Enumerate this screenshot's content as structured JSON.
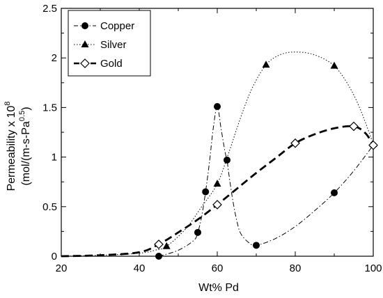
{
  "chart_data": {
    "type": "line",
    "xlabel": "Wt% Pd",
    "ylabel_line1_prefix": "Permeability x 10",
    "ylabel_line1_sup": "8",
    "ylabel_line2_prefix": "(mol/(m-s-Pa",
    "ylabel_line2_sup": "0.5",
    "ylabel_line2_suffix": ")",
    "xlim": [
      20,
      100
    ],
    "ylim": [
      0,
      2.5
    ],
    "xticks": [
      "20",
      "40",
      "60",
      "80",
      "100"
    ],
    "yticks": [
      "0",
      "0.5",
      "1",
      "1.5",
      "2",
      "2.5"
    ],
    "legend_position": "top-left",
    "series": [
      {
        "name": "Copper",
        "marker": "circle",
        "line_style": "dash-dot",
        "points": [
          {
            "x": 45,
            "y": 0.0
          },
          {
            "x": 55,
            "y": 0.24
          },
          {
            "x": 57,
            "y": 0.65
          },
          {
            "x": 60,
            "y": 1.51
          },
          {
            "x": 62.5,
            "y": 0.97
          },
          {
            "x": 70,
            "y": 0.11
          },
          {
            "x": 90,
            "y": 0.64
          },
          {
            "x": 100,
            "y": 1.12
          }
        ]
      },
      {
        "name": "Silver",
        "marker": "triangle",
        "line_style": "dotted",
        "points": [
          {
            "x": 47,
            "y": 0.1
          },
          {
            "x": 60,
            "y": 0.73
          },
          {
            "x": 72.5,
            "y": 1.93
          },
          {
            "x": 90,
            "y": 1.92
          },
          {
            "x": 100,
            "y": 1.13
          }
        ]
      },
      {
        "name": "Gold",
        "marker": "diamond-open",
        "line_style": "dashed",
        "points": [
          {
            "x": 45,
            "y": 0.12
          },
          {
            "x": 60,
            "y": 0.52
          },
          {
            "x": 80,
            "y": 1.14
          },
          {
            "x": 95,
            "y": 1.31
          },
          {
            "x": 100,
            "y": 1.12
          }
        ]
      }
    ],
    "curves": {
      "copper": [
        [
          45,
          0.0
        ],
        [
          50,
          0.06
        ],
        [
          54,
          0.16
        ],
        [
          55,
          0.24
        ],
        [
          56,
          0.4
        ],
        [
          57,
          0.65
        ],
        [
          58,
          0.95
        ],
        [
          59,
          1.3
        ],
        [
          60,
          1.51
        ],
        [
          61,
          1.28
        ],
        [
          62,
          1.05
        ],
        [
          62.5,
          0.97
        ],
        [
          63,
          0.82
        ],
        [
          64,
          0.56
        ],
        [
          65,
          0.36
        ],
        [
          66,
          0.23
        ],
        [
          68,
          0.14
        ],
        [
          70,
          0.11
        ],
        [
          75,
          0.18
        ],
        [
          80,
          0.3
        ],
        [
          85,
          0.46
        ],
        [
          90,
          0.64
        ],
        [
          95,
          0.86
        ],
        [
          100,
          1.12
        ]
      ],
      "silver": [
        [
          20,
          0.0
        ],
        [
          30,
          0.01
        ],
        [
          40,
          0.03
        ],
        [
          44,
          0.06
        ],
        [
          47,
          0.1
        ],
        [
          52,
          0.28
        ],
        [
          56,
          0.5
        ],
        [
          60,
          0.73
        ],
        [
          63,
          1.05
        ],
        [
          66,
          1.4
        ],
        [
          69,
          1.7
        ],
        [
          72.5,
          1.93
        ],
        [
          76,
          2.03
        ],
        [
          80,
          2.06
        ],
        [
          85,
          2.03
        ],
        [
          90,
          1.92
        ],
        [
          94,
          1.7
        ],
        [
          97,
          1.45
        ],
        [
          100,
          1.13
        ]
      ],
      "gold": [
        [
          20,
          0.0
        ],
        [
          30,
          0.01
        ],
        [
          40,
          0.04
        ],
        [
          45,
          0.12
        ],
        [
          50,
          0.24
        ],
        [
          55,
          0.37
        ],
        [
          60,
          0.52
        ],
        [
          65,
          0.68
        ],
        [
          70,
          0.84
        ],
        [
          75,
          0.99
        ],
        [
          80,
          1.14
        ],
        [
          85,
          1.23
        ],
        [
          90,
          1.29
        ],
        [
          95,
          1.31
        ],
        [
          98,
          1.24
        ],
        [
          100,
          1.12
        ]
      ]
    }
  }
}
